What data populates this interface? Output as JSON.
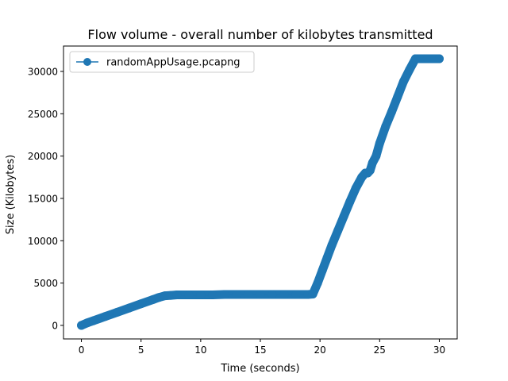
{
  "chart_data": {
    "type": "line",
    "title": "Flow volume - overall number of kilobytes transmitted",
    "xlabel": "Time (seconds)",
    "ylabel": "Size (Kilobytes)",
    "xlim": [
      -1.5,
      31.5
    ],
    "ylim": [
      -1600,
      33000
    ],
    "xticks": [
      0,
      5,
      10,
      15,
      20,
      25,
      30
    ],
    "yticks": [
      0,
      5000,
      10000,
      15000,
      20000,
      25000,
      30000
    ],
    "xtick_labels": [
      "0",
      "5",
      "10",
      "15",
      "20",
      "25",
      "30"
    ],
    "ytick_labels": [
      "0",
      "5000",
      "10000",
      "15000",
      "20000",
      "25000",
      "30000"
    ],
    "grid": false,
    "legend_position": "upper left",
    "series": [
      {
        "name": "randomAppUsage.pcapng",
        "color": "#1f77b4",
        "marker": "circle",
        "x": [
          0,
          0.5,
          1,
          2,
          3,
          4,
          5,
          6,
          6.5,
          7,
          7.5,
          8,
          9,
          10,
          11,
          12,
          13,
          14,
          15,
          16,
          17,
          18,
          19,
          19.4,
          19.8,
          20.2,
          20.6,
          21,
          21.5,
          22,
          22.5,
          23,
          23.5,
          23.8,
          24,
          24.2,
          24.4,
          24.7,
          25,
          25.5,
          26,
          26.5,
          27,
          27.5,
          28,
          28.3,
          28.6,
          28.8,
          29,
          29.5,
          30
        ],
        "y": [
          0,
          300,
          550,
          1050,
          1550,
          2050,
          2550,
          3050,
          3300,
          3500,
          3550,
          3600,
          3600,
          3600,
          3600,
          3650,
          3650,
          3650,
          3650,
          3650,
          3650,
          3650,
          3650,
          3700,
          5000,
          6500,
          8000,
          9500,
          11200,
          12900,
          14600,
          16200,
          17500,
          18000,
          18000,
          18300,
          19200,
          20000,
          21500,
          23500,
          25200,
          27000,
          28800,
          30200,
          31500,
          31500,
          31500,
          31500,
          31500,
          31500,
          31500
        ]
      }
    ]
  }
}
